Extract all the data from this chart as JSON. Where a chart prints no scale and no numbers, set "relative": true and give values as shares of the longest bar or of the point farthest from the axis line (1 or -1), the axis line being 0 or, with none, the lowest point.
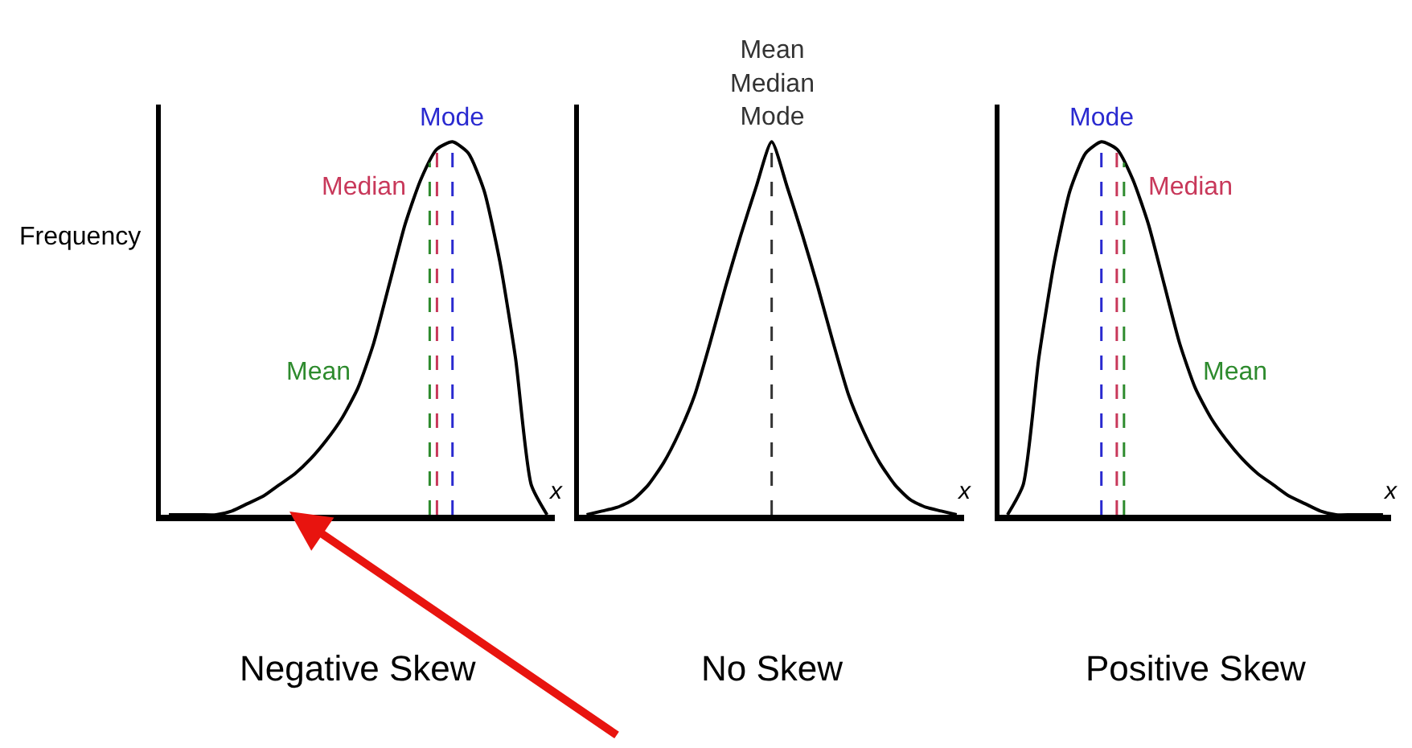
{
  "chart_data": [
    {
      "type": "line",
      "title": "Negative Skew",
      "xlabel": "x",
      "ylabel": "Frequency",
      "relative": true,
      "color": "#000000",
      "categories": [
        null,
        null,
        null,
        null,
        null,
        null,
        null,
        null,
        null,
        null,
        null,
        null,
        null,
        null,
        null,
        null,
        null,
        null,
        null,
        null,
        null,
        null,
        null,
        null,
        null
      ],
      "values": [
        0,
        0,
        0,
        0,
        0.01,
        0.03,
        0.05,
        0.08,
        0.11,
        0.15,
        0.2,
        0.26,
        0.34,
        0.46,
        0.62,
        0.78,
        0.9,
        0.98,
        1.0,
        0.97,
        0.87,
        0.68,
        0.42,
        0.08,
        0
      ],
      "annotations": [
        "Mean",
        "Median",
        "Mode"
      ]
    },
    {
      "type": "line",
      "title": "No Skew",
      "xlabel": "x",
      "relative": true,
      "color": "#000000",
      "categories": [
        null,
        null,
        null,
        null,
        null,
        null,
        null,
        null,
        null,
        null,
        null,
        null,
        null,
        null,
        null,
        null,
        null,
        null,
        null,
        null,
        null,
        null,
        null,
        null,
        null
      ],
      "values": [
        0,
        0.01,
        0.02,
        0.04,
        0.08,
        0.14,
        0.22,
        0.32,
        0.46,
        0.61,
        0.75,
        0.88,
        1.0,
        0.88,
        0.75,
        0.61,
        0.46,
        0.32,
        0.22,
        0.14,
        0.08,
        0.04,
        0.02,
        0.01,
        0
      ],
      "annotations": [
        "Mean\nMedian\nMode"
      ]
    },
    {
      "type": "line",
      "title": "Positive Skew",
      "xlabel": "x",
      "relative": true,
      "color": "#000000",
      "categories": [
        null,
        null,
        null,
        null,
        null,
        null,
        null,
        null,
        null,
        null,
        null,
        null,
        null,
        null,
        null,
        null,
        null,
        null,
        null,
        null,
        null,
        null,
        null,
        null,
        null
      ],
      "values": [
        0,
        0.08,
        0.42,
        0.68,
        0.87,
        0.97,
        1.0,
        0.98,
        0.9,
        0.78,
        0.62,
        0.46,
        0.34,
        0.26,
        0.2,
        0.15,
        0.11,
        0.08,
        0.05,
        0.03,
        0.01,
        0,
        0,
        0,
        0
      ],
      "annotations": [
        "Mean",
        "Median",
        "Mode"
      ]
    }
  ]
}
